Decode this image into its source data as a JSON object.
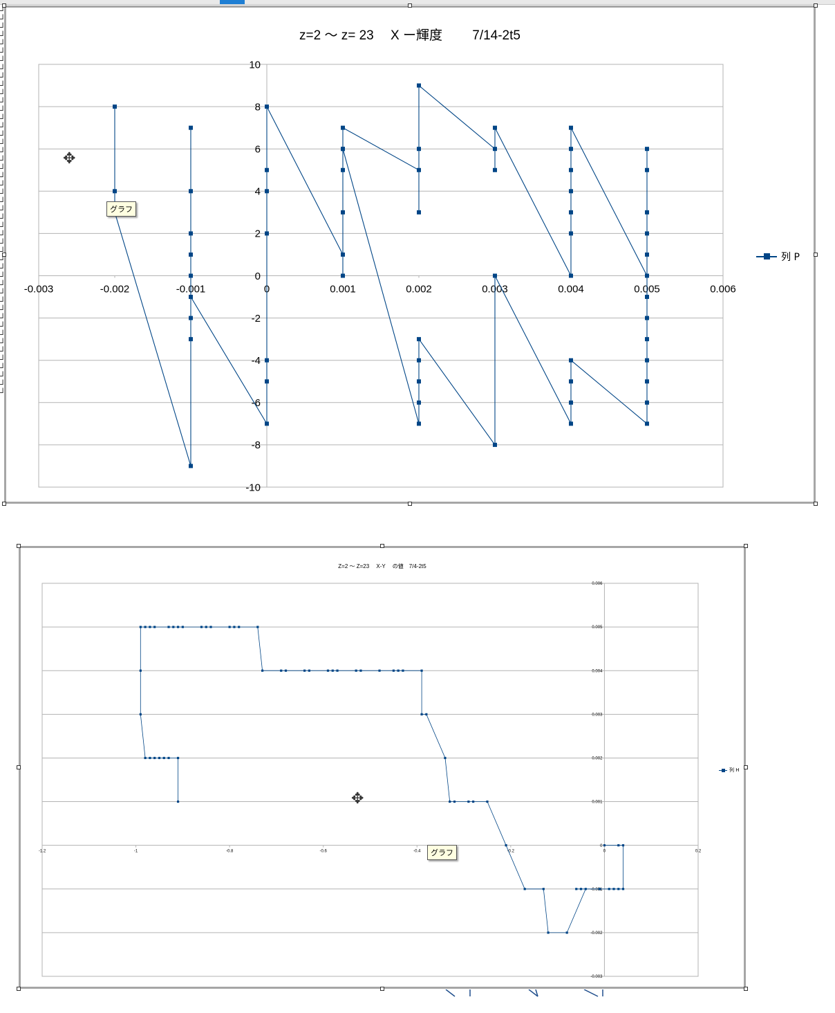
{
  "tooltips": {
    "chart1": "グラフ",
    "chart2": "グラフ"
  },
  "charts": [
    {
      "title": "z=2 〜 z= 23　 X ー輝度　　 7/14-2t5",
      "legend": "列 P",
      "type": "line",
      "xlim": [
        -0.003,
        0.006
      ],
      "ylim": [
        -10,
        10
      ],
      "xticks": [
        -0.003,
        -0.002,
        -0.001,
        0,
        0.001,
        0.002,
        0.003,
        0.004,
        0.005,
        0.006
      ],
      "yticks": [
        -10,
        -8,
        -6,
        -4,
        -2,
        0,
        2,
        4,
        6,
        8,
        10
      ],
      "series_color": "#004586",
      "points": [
        [
          -0.002,
          8
        ],
        [
          -0.002,
          4
        ],
        [
          -0.002,
          3
        ],
        [
          -0.001,
          -9
        ],
        [
          -0.001,
          7
        ],
        [
          -0.001,
          4
        ],
        [
          -0.001,
          2
        ],
        [
          -0.001,
          1
        ],
        [
          -0.001,
          0
        ],
        [
          -0.001,
          -1
        ],
        [
          -0.001,
          -2
        ],
        [
          -0.001,
          -3
        ],
        [
          -0.001,
          -1
        ],
        [
          0,
          -7
        ],
        [
          0,
          -5
        ],
        [
          0,
          -4
        ],
        [
          0,
          2
        ],
        [
          0,
          4
        ],
        [
          0,
          5
        ],
        [
          0,
          8
        ],
        [
          0.001,
          1
        ],
        [
          0.001,
          0
        ],
        [
          0.001,
          3
        ],
        [
          0.001,
          5
        ],
        [
          0.001,
          6
        ],
        [
          0.001,
          7
        ],
        [
          0.002,
          5
        ],
        [
          0.002,
          3
        ],
        [
          0.002,
          6
        ],
        [
          0.002,
          9
        ],
        [
          0.003,
          6
        ],
        [
          0.003,
          5
        ],
        [
          0.003,
          7
        ],
        [
          0.004,
          0
        ],
        [
          0.004,
          2
        ],
        [
          0.004,
          3
        ],
        [
          0.004,
          4
        ],
        [
          0.004,
          5
        ],
        [
          0.004,
          6
        ],
        [
          0.004,
          7
        ],
        [
          0.005,
          0
        ],
        [
          0.005,
          1
        ],
        [
          0.005,
          2
        ],
        [
          0.005,
          3
        ],
        [
          0.005,
          5
        ],
        [
          0.005,
          6
        ],
        [
          0.005,
          -1
        ],
        [
          0.005,
          -2
        ],
        [
          0.005,
          -3
        ],
        [
          0.005,
          -4
        ],
        [
          0.005,
          -5
        ],
        [
          0.005,
          -6
        ],
        [
          0.005,
          -7
        ],
        [
          0.004,
          -4
        ],
        [
          0.004,
          -5
        ],
        [
          0.004,
          -6
        ],
        [
          0.004,
          -7
        ],
        [
          0.003,
          0
        ],
        [
          0.003,
          -8
        ],
        [
          0.002,
          -3
        ],
        [
          0.002,
          -4
        ],
        [
          0.002,
          -5
        ],
        [
          0.002,
          -6
        ],
        [
          0.002,
          -7
        ],
        [
          0.001,
          6
        ]
      ]
    },
    {
      "title": "Z=2 〜 Z=23　 X-Y　 の値　7/4-2t5",
      "legend": "列 H",
      "type": "line",
      "xlim": [
        -1.2,
        0.2
      ],
      "ylim": [
        -0.003,
        0.006
      ],
      "xticks": [
        -1.2,
        -1,
        -0.8,
        -0.6,
        -0.4,
        -0.2,
        0,
        0.2
      ],
      "yticks": [
        -0.003,
        -0.002,
        -0.001,
        0,
        0.001,
        0.002,
        0.003,
        0.004,
        0.005,
        0.006
      ],
      "series_color": "#004586",
      "points": [
        [
          -0.91,
          0.001
        ],
        [
          -0.91,
          0.002
        ],
        [
          -0.93,
          0.002
        ],
        [
          -0.94,
          0.002
        ],
        [
          -0.95,
          0.002
        ],
        [
          -0.96,
          0.002
        ],
        [
          -0.97,
          0.002
        ],
        [
          -0.98,
          0.002
        ],
        [
          -0.99,
          0.003
        ],
        [
          -0.99,
          0.004
        ],
        [
          -0.99,
          0.005
        ],
        [
          -0.98,
          0.005
        ],
        [
          -0.97,
          0.005
        ],
        [
          -0.96,
          0.005
        ],
        [
          -0.93,
          0.005
        ],
        [
          -0.92,
          0.005
        ],
        [
          -0.91,
          0.005
        ],
        [
          -0.9,
          0.005
        ],
        [
          -0.86,
          0.005
        ],
        [
          -0.85,
          0.005
        ],
        [
          -0.84,
          0.005
        ],
        [
          -0.8,
          0.005
        ],
        [
          -0.79,
          0.005
        ],
        [
          -0.78,
          0.005
        ],
        [
          -0.74,
          0.005
        ],
        [
          -0.73,
          0.004
        ],
        [
          -0.69,
          0.004
        ],
        [
          -0.68,
          0.004
        ],
        [
          -0.64,
          0.004
        ],
        [
          -0.63,
          0.004
        ],
        [
          -0.59,
          0.004
        ],
        [
          -0.58,
          0.004
        ],
        [
          -0.57,
          0.004
        ],
        [
          -0.53,
          0.004
        ],
        [
          -0.52,
          0.004
        ],
        [
          -0.48,
          0.004
        ],
        [
          -0.45,
          0.004
        ],
        [
          -0.44,
          0.004
        ],
        [
          -0.43,
          0.004
        ],
        [
          -0.39,
          0.004
        ],
        [
          -0.39,
          0.003
        ],
        [
          -0.38,
          0.003
        ],
        [
          -0.34,
          0.002
        ],
        [
          -0.33,
          0.001
        ],
        [
          -0.32,
          0.001
        ],
        [
          -0.29,
          0.001
        ],
        [
          -0.28,
          0.001
        ],
        [
          -0.25,
          0.001
        ],
        [
          -0.21,
          0
        ],
        [
          -0.17,
          -0.001
        ],
        [
          -0.13,
          -0.001
        ],
        [
          -0.12,
          -0.002
        ],
        [
          -0.08,
          -0.002
        ],
        [
          -0.04,
          -0.001
        ],
        [
          -0.05,
          -0.001
        ],
        [
          -0.06,
          -0.001
        ],
        [
          -0.01,
          -0.001
        ],
        [
          0.01,
          -0.001
        ],
        [
          0.02,
          -0.001
        ],
        [
          0.03,
          -0.001
        ],
        [
          0.04,
          -0.001
        ],
        [
          0.04,
          0
        ],
        [
          0.03,
          0
        ],
        [
          0,
          0
        ]
      ]
    }
  ]
}
